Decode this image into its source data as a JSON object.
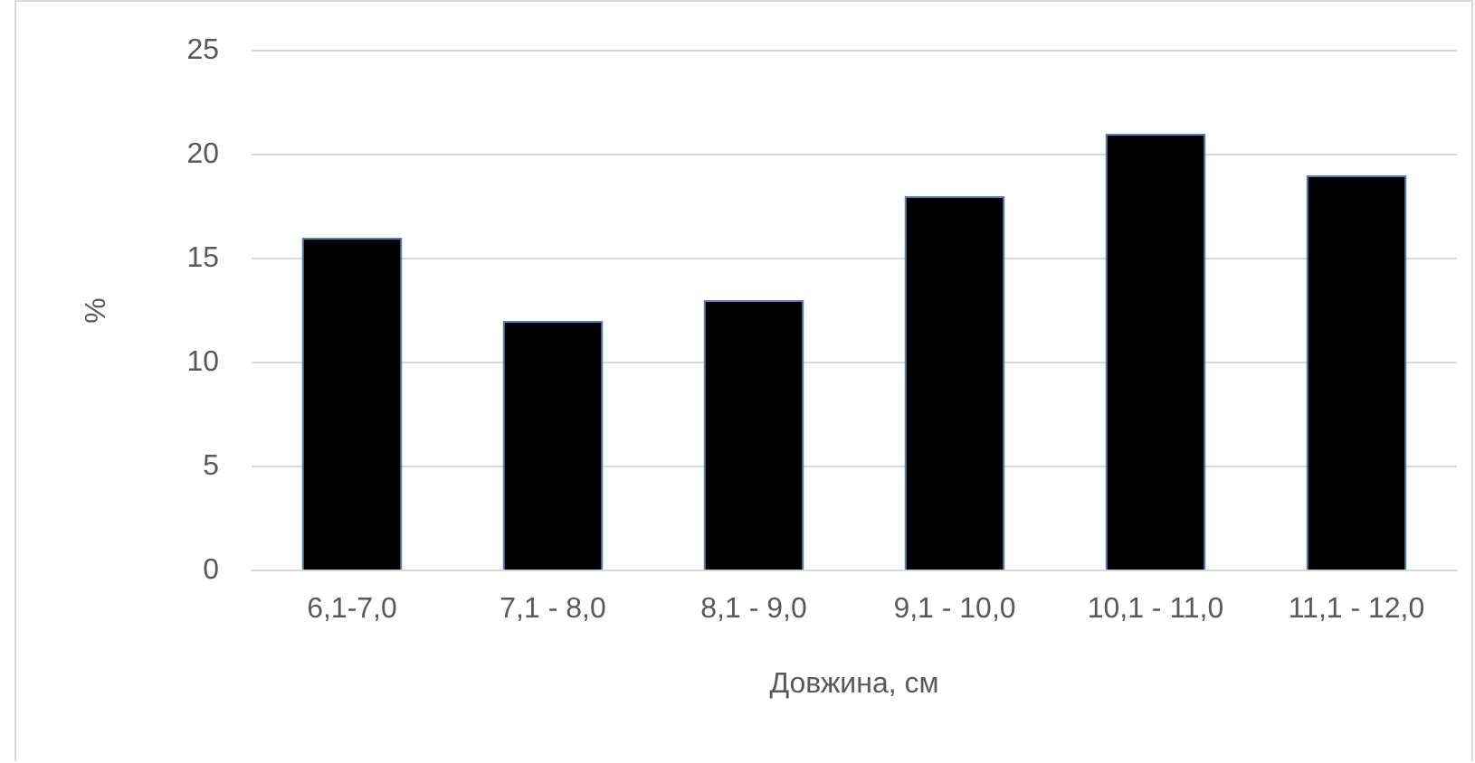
{
  "chart_data": {
    "type": "bar",
    "xlabel": "Довжина, см",
    "ylabel": "%",
    "categories": [
      "6,1-7,0",
      "7,1 - 8,0",
      "8,1 - 9,0",
      "9,1 - 10,0",
      "10,1 - 11,0",
      "11,1 - 12,0"
    ],
    "values": [
      16,
      12,
      13,
      18,
      21,
      19
    ],
    "color": "#000000",
    "ylim": [
      0,
      25
    ],
    "yticks": [
      0,
      5,
      10,
      15,
      20,
      25
    ],
    "grid": "y",
    "legend": false
  }
}
